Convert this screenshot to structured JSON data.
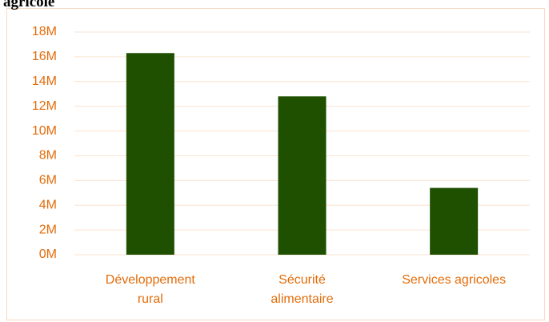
{
  "chart_data": {
    "type": "bar",
    "title": "agricole",
    "categories": [
      "Développement\nrural",
      "Sécurité\nalimentaire",
      "Services agricoles"
    ],
    "values": [
      16300000,
      12800000,
      5400000
    ],
    "color": "#1e5000",
    "ylim": [
      0,
      18000000
    ],
    "yticks": [
      {
        "value": 0,
        "label": "0M"
      },
      {
        "value": 2000000,
        "label": "2M"
      },
      {
        "value": 4000000,
        "label": "4M"
      },
      {
        "value": 6000000,
        "label": "6M"
      },
      {
        "value": 8000000,
        "label": "8M"
      },
      {
        "value": 10000000,
        "label": "10M"
      },
      {
        "value": 12000000,
        "label": "12M"
      },
      {
        "value": 14000000,
        "label": "14M"
      },
      {
        "value": 16000000,
        "label": "16M"
      },
      {
        "value": 18000000,
        "label": "18M"
      }
    ],
    "grid": true
  }
}
